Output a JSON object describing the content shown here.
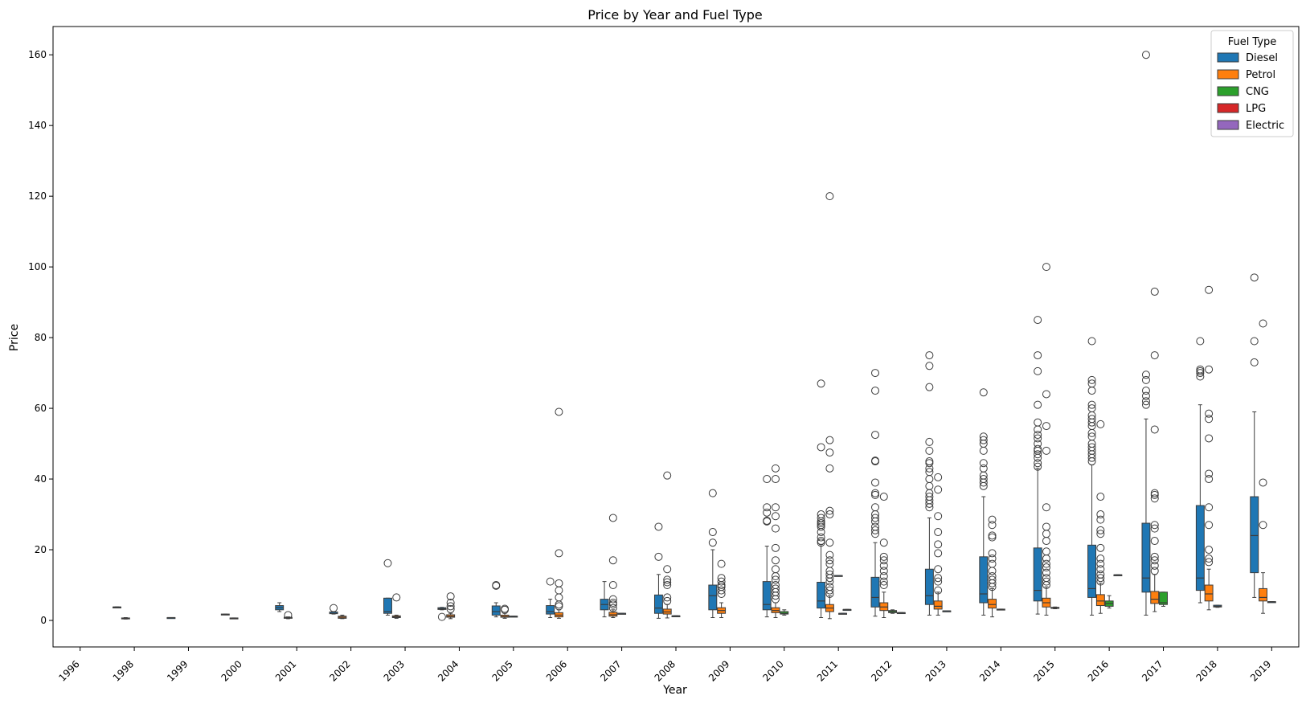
{
  "chart_data": {
    "type": "boxplot",
    "title": "Price by Year and Fuel Type",
    "xlabel": "Year",
    "ylabel": "Price",
    "ylim": [
      -7.5,
      168
    ],
    "yticks": [
      0,
      20,
      40,
      60,
      80,
      100,
      120,
      140,
      160
    ],
    "categories": [
      "1996",
      "1998",
      "1999",
      "2000",
      "2001",
      "2002",
      "2003",
      "2004",
      "2005",
      "2006",
      "2007",
      "2008",
      "2009",
      "2010",
      "2011",
      "2012",
      "2013",
      "2014",
      "2015",
      "2016",
      "2017",
      "2018",
      "2019"
    ],
    "legend": {
      "title": "Fuel Type",
      "position": "top-right",
      "entries": [
        {
          "name": "Diesel",
          "color": "#1f77b4"
        },
        {
          "name": "Petrol",
          "color": "#ff7f0e"
        },
        {
          "name": "CNG",
          "color": "#2ca02c"
        },
        {
          "name": "LPG",
          "color": "#d62728"
        },
        {
          "name": "Electric",
          "color": "#9467bd"
        }
      ]
    },
    "series": [
      {
        "name": "Diesel",
        "color": "#1f77b4",
        "boxes": [
          {
            "year": "1998",
            "whislo": 3.8,
            "q1": 3.8,
            "med": 3.8,
            "q3": 3.8,
            "whishi": 3.8,
            "fliers": []
          },
          {
            "year": "2001",
            "whislo": 2.5,
            "q1": 3.0,
            "med": 3.6,
            "q3": 4.2,
            "whishi": 5.0,
            "fliers": []
          },
          {
            "year": "2002",
            "whislo": 1.8,
            "q1": 1.9,
            "med": 2.0,
            "q3": 2.4,
            "whishi": 2.5,
            "fliers": [
              3.5
            ]
          },
          {
            "year": "2003",
            "whislo": 1.5,
            "q1": 2.0,
            "med": 2.5,
            "q3": 6.3,
            "whishi": 6.3,
            "fliers": [
              16.2
            ]
          },
          {
            "year": "2004",
            "whislo": 3.0,
            "q1": 3.1,
            "med": 3.3,
            "q3": 3.6,
            "whishi": 3.7,
            "fliers": [
              1.0
            ]
          },
          {
            "year": "2005",
            "whislo": 1.0,
            "q1": 1.5,
            "med": 2.5,
            "q3": 4.1,
            "whishi": 5.0,
            "fliers": [
              10.0,
              9.8
            ]
          },
          {
            "year": "2006",
            "whislo": 0.8,
            "q1": 1.8,
            "med": 2.5,
            "q3": 4.2,
            "whishi": 6.0,
            "fliers": [
              11.0
            ]
          },
          {
            "year": "2007",
            "whislo": 1.0,
            "q1": 3.0,
            "med": 4.5,
            "q3": 6.0,
            "whishi": 11.0,
            "fliers": []
          },
          {
            "year": "2008",
            "whislo": 0.6,
            "q1": 2.0,
            "med": 3.5,
            "q3": 7.2,
            "whishi": 13.0,
            "fliers": [
              18.0,
              26.5
            ]
          },
          {
            "year": "2009",
            "whislo": 0.8,
            "q1": 3.0,
            "med": 7.0,
            "q3": 10.0,
            "whishi": 20.0,
            "fliers": [
              22.0,
              25.0,
              36.0
            ]
          },
          {
            "year": "2010",
            "whislo": 1.0,
            "q1": 3.0,
            "med": 4.5,
            "q3": 11.0,
            "whishi": 21.0,
            "fliers": [
              28.0,
              28.2,
              30.5,
              32.0,
              40.0
            ]
          },
          {
            "year": "2011",
            "whislo": 0.8,
            "q1": 3.5,
            "med": 5.5,
            "q3": 10.8,
            "whishi": 21.5,
            "fliers": [
              22.0,
              22.5,
              23.5,
              25.0,
              26.5,
              27.0,
              27.5,
              28.0,
              29.0,
              30.0,
              49.0,
              67.0
            ]
          },
          {
            "year": "2012",
            "whislo": 1.2,
            "q1": 3.8,
            "med": 6.5,
            "q3": 12.2,
            "whishi": 22.0,
            "fliers": [
              24.5,
              25.5,
              26.5,
              28.0,
              29.0,
              30.0,
              32.0,
              35.5,
              36.0,
              39.0,
              45.0,
              45.2,
              52.5,
              65.0,
              70.0
            ]
          },
          {
            "year": "2013",
            "whislo": 1.5,
            "q1": 4.5,
            "med": 7.0,
            "q3": 14.5,
            "whishi": 29.0,
            "fliers": [
              32.0,
              33.0,
              34.0,
              35.0,
              36.0,
              38.0,
              40.0,
              42.0,
              43.0,
              44.5,
              45.0,
              48.0,
              50.5,
              66.0,
              72.0,
              75.0
            ]
          },
          {
            "year": "2014",
            "whislo": 1.5,
            "q1": 5.0,
            "med": 7.5,
            "q3": 18.0,
            "whishi": 35.0,
            "fliers": [
              38.0,
              39.0,
              40.0,
              41.0,
              43.0,
              44.5,
              48.0,
              50.0,
              51.0,
              52.0,
              64.5
            ]
          },
          {
            "year": "2015",
            "whislo": 1.8,
            "q1": 5.5,
            "med": 8.5,
            "q3": 20.5,
            "whishi": 43.0,
            "fliers": [
              43.5,
              44.5,
              46.0,
              47.0,
              48.0,
              48.5,
              50.0,
              51.5,
              52.5,
              54.0,
              56.0,
              61.0,
              70.5,
              75.0,
              85.0
            ]
          },
          {
            "year": "2016",
            "whislo": 1.5,
            "q1": 6.5,
            "med": 9.0,
            "q3": 21.3,
            "whishi": 44.0,
            "fliers": [
              45.0,
              46.0,
              47.0,
              48.0,
              49.0,
              50.0,
              52.0,
              53.0,
              55.0,
              56.0,
              57.0,
              58.0,
              60.0,
              61.0,
              65.0,
              67.0,
              68.0,
              79.0
            ]
          },
          {
            "year": "2017",
            "whislo": 1.5,
            "q1": 8.0,
            "med": 12.0,
            "q3": 27.5,
            "whishi": 57.0,
            "fliers": [
              61.0,
              62.0,
              63.5,
              65.0,
              68.0,
              69.5,
              160.0
            ]
          },
          {
            "year": "2018",
            "whislo": 5.0,
            "q1": 8.5,
            "med": 12.0,
            "q3": 32.5,
            "whishi": 61.0,
            "fliers": [
              69.0,
              70.0,
              70.5,
              71.0,
              79.0
            ]
          },
          {
            "year": "2019",
            "whislo": 6.5,
            "q1": 13.5,
            "med": 24.0,
            "q3": 35.0,
            "whishi": 59.0,
            "fliers": [
              73.0,
              79.0,
              97.0
            ]
          }
        ]
      },
      {
        "name": "Petrol",
        "color": "#ff7f0e",
        "boxes": [
          {
            "year": "1998",
            "whislo": 0.4,
            "q1": 0.5,
            "med": 0.6,
            "q3": 0.7,
            "whishi": 0.8,
            "fliers": []
          },
          {
            "year": "2000",
            "whislo": 0.5,
            "q1": 0.5,
            "med": 0.6,
            "q3": 0.7,
            "whishi": 0.7,
            "fliers": []
          },
          {
            "year": "2001",
            "whislo": 0.5,
            "q1": 0.6,
            "med": 0.7,
            "q3": 0.9,
            "whishi": 1.0,
            "fliers": [
              1.5
            ]
          },
          {
            "year": "2002",
            "whislo": 0.5,
            "q1": 0.6,
            "med": 0.9,
            "q3": 1.2,
            "whishi": 1.5,
            "fliers": []
          },
          {
            "year": "2003",
            "whislo": 0.6,
            "q1": 0.8,
            "med": 1.0,
            "q3": 1.3,
            "whishi": 1.5,
            "fliers": [
              6.5
            ]
          },
          {
            "year": "2004",
            "whislo": 0.5,
            "q1": 0.9,
            "med": 1.2,
            "q3": 1.6,
            "whishi": 2.0,
            "fliers": [
              3.2,
              4.0,
              5.0,
              6.8
            ]
          },
          {
            "year": "2005",
            "whislo": 0.6,
            "q1": 0.9,
            "med": 1.1,
            "q3": 1.5,
            "whishi": 2.0,
            "fliers": [
              3.0,
              3.3
            ]
          },
          {
            "year": "2006",
            "whislo": 0.6,
            "q1": 1.0,
            "med": 1.5,
            "q3": 2.2,
            "whishi": 3.0,
            "fliers": [
              4.0,
              4.5,
              6.5,
              8.5,
              10.5,
              19.0,
              59.0
            ]
          },
          {
            "year": "2007",
            "whislo": 0.8,
            "q1": 1.2,
            "med": 1.6,
            "q3": 2.3,
            "whishi": 3.0,
            "fliers": [
              3.5,
              4.5,
              5.0,
              6.0,
              10.0,
              17.0,
              29.0
            ]
          },
          {
            "year": "2008",
            "whislo": 0.7,
            "q1": 1.8,
            "med": 2.4,
            "q3": 3.2,
            "whishi": 4.5,
            "fliers": [
              5.5,
              6.5,
              10.0,
              10.8,
              11.5,
              14.5,
              41.0
            ]
          },
          {
            "year": "2009",
            "whislo": 0.8,
            "q1": 2.0,
            "med": 2.8,
            "q3": 3.6,
            "whishi": 5.0,
            "fliers": [
              7.5,
              8.5,
              9.5,
              10.0,
              11.0,
              12.0,
              16.0
            ]
          },
          {
            "year": "2010",
            "whislo": 0.8,
            "q1": 2.2,
            "med": 2.8,
            "q3": 3.6,
            "whishi": 5.0,
            "fliers": [
              6.0,
              7.0,
              8.0,
              9.0,
              10.0,
              11.5,
              12.5,
              14.5,
              17.0,
              20.5,
              26.0,
              29.5,
              32.0,
              40.0,
              43.0
            ]
          },
          {
            "year": "2011",
            "whislo": 0.5,
            "q1": 2.5,
            "med": 3.5,
            "q3": 4.5,
            "whishi": 7.0,
            "fliers": [
              7.5,
              8.5,
              9.5,
              11.0,
              12.0,
              13.0,
              14.0,
              16.0,
              17.0,
              18.5,
              22.0,
              30.0,
              31.0,
              43.0,
              47.5,
              51.0,
              120.0
            ]
          },
          {
            "year": "2012",
            "whislo": 0.8,
            "q1": 2.8,
            "med": 3.8,
            "q3": 5.0,
            "whishi": 8.0,
            "fliers": [
              10.0,
              11.0,
              12.5,
              14.0,
              15.5,
              17.0,
              18.0,
              22.0,
              35.0
            ]
          },
          {
            "year": "2013",
            "whislo": 1.5,
            "q1": 3.2,
            "med": 4.0,
            "q3": 5.5,
            "whishi": 8.0,
            "fliers": [
              8.5,
              11.0,
              12.0,
              14.5,
              19.0,
              21.5,
              25.0,
              29.5,
              37.0,
              40.5
            ]
          },
          {
            "year": "2014",
            "whislo": 1.0,
            "q1": 3.5,
            "med": 4.5,
            "q3": 6.0,
            "whishi": 9.0,
            "fliers": [
              9.5,
              10.5,
              11.5,
              12.5,
              14.0,
              16.0,
              17.5,
              19.0,
              23.5,
              24.0,
              27.0,
              28.5
            ]
          },
          {
            "year": "2015",
            "whislo": 1.5,
            "q1": 3.8,
            "med": 5.0,
            "q3": 6.3,
            "whishi": 9.5,
            "fliers": [
              10.0,
              11.0,
              12.0,
              13.5,
              15.0,
              16.0,
              17.5,
              19.5,
              22.5,
              24.5,
              26.5,
              32.0,
              48.0,
              55.0,
              64.0,
              100.0
            ]
          },
          {
            "year": "2016",
            "whislo": 2.0,
            "q1": 4.2,
            "med": 5.5,
            "q3": 7.3,
            "whishi": 10.5,
            "fliers": [
              11.0,
              12.0,
              13.0,
              14.5,
              16.0,
              17.5,
              20.5,
              24.5,
              25.5,
              28.5,
              30.0,
              35.0,
              55.5
            ]
          },
          {
            "year": "2017",
            "whislo": 2.5,
            "q1": 4.8,
            "med": 6.0,
            "q3": 8.2,
            "whishi": 13.0,
            "fliers": [
              14.0,
              15.5,
              17.0,
              18.0,
              22.5,
              26.0,
              27.0,
              34.5,
              35.5,
              36.0,
              54.0,
              75.0,
              93.0
            ]
          },
          {
            "year": "2018",
            "whislo": 3.0,
            "q1": 5.5,
            "med": 7.5,
            "q3": 10.0,
            "whishi": 14.5,
            "fliers": [
              16.5,
              17.5,
              20.0,
              27.0,
              32.0,
              40.0,
              41.5,
              51.5,
              57.0,
              58.5,
              71.0,
              93.5
            ]
          },
          {
            "year": "2019",
            "whislo": 2.0,
            "q1": 5.5,
            "med": 6.5,
            "q3": 9.0,
            "whishi": 13.5,
            "fliers": [
              27.0,
              39.0,
              84.0
            ]
          }
        ]
      },
      {
        "name": "CNG",
        "color": "#2ca02c",
        "boxes": [
          {
            "year": "2010",
            "whislo": 1.5,
            "q1": 1.8,
            "med": 2.0,
            "q3": 2.5,
            "whishi": 3.0,
            "fliers": []
          },
          {
            "year": "2012",
            "whislo": 2.0,
            "q1": 2.2,
            "med": 2.5,
            "q3": 2.8,
            "whishi": 3.0,
            "fliers": []
          },
          {
            "year": "2016",
            "whislo": 3.5,
            "q1": 4.0,
            "med": 4.8,
            "q3": 5.5,
            "whishi": 7.0,
            "fliers": []
          },
          {
            "year": "2017",
            "whislo": 4.0,
            "q1": 4.5,
            "med": 5.0,
            "q3": 8.0,
            "whishi": 8.0,
            "fliers": []
          }
        ]
      },
      {
        "name": "LPG",
        "color": "#d62728",
        "boxes": []
      },
      {
        "name": "Electric",
        "color": "#9467bd",
        "boxes": []
      }
    ],
    "misc_boxes": [
      {
        "year": "1999",
        "color": "#1f77b4",
        "whislo": 0.8,
        "q1": 0.8,
        "med": 0.8,
        "q3": 0.8,
        "whishi": 0.8,
        "fliers": []
      },
      {
        "year": "2000",
        "color": "#1f77b4",
        "whislo": 1.6,
        "q1": 1.6,
        "med": 1.7,
        "q3": 1.8,
        "whishi": 1.8,
        "fliers": []
      },
      {
        "year": "2005",
        "color": "#1f77b4",
        "whislo": 1.2,
        "q1": 1.2,
        "med": 1.2,
        "q3": 1.2,
        "whishi": 1.2,
        "fliers": [],
        "slot": 2
      },
      {
        "year": "2007",
        "color": "#1f77b4",
        "whislo": 2.0,
        "q1": 2.0,
        "med": 2.0,
        "q3": 2.0,
        "whishi": 2.0,
        "fliers": [],
        "slot": 2
      },
      {
        "year": "2008",
        "color": "#1f77b4",
        "whislo": 1.3,
        "q1": 1.3,
        "med": 1.3,
        "q3": 1.3,
        "whishi": 1.3,
        "fliers": [],
        "slot": 2
      },
      {
        "year": "2011",
        "color": "#1f77b4",
        "whislo": 12.7,
        "q1": 12.7,
        "med": 12.7,
        "q3": 12.7,
        "whishi": 12.7,
        "fliers": [],
        "slot": 2
      },
      {
        "year": "2011",
        "color": "#1f77b4",
        "whislo": 2.0,
        "q1": 2.0,
        "med": 2.0,
        "q3": 2.0,
        "whishi": 2.0,
        "fliers": [],
        "slot": 2.5
      },
      {
        "year": "2011",
        "color": "#1f77b4",
        "whislo": 3.1,
        "q1": 3.1,
        "med": 3.1,
        "q3": 3.1,
        "whishi": 3.1,
        "fliers": [],
        "slot": 3
      },
      {
        "year": "2012",
        "color": "#1f77b4",
        "whislo": 2.2,
        "q1": 2.2,
        "med": 2.2,
        "q3": 2.2,
        "whishi": 2.2,
        "fliers": [],
        "slot": 3
      },
      {
        "year": "2013",
        "color": "#1f77b4",
        "whislo": 2.7,
        "q1": 2.7,
        "med": 2.7,
        "q3": 2.7,
        "whishi": 2.7,
        "fliers": [],
        "slot": 2
      },
      {
        "year": "2014",
        "color": "#1f77b4",
        "whislo": 3.0,
        "q1": 3.0,
        "med": 3.1,
        "q3": 3.2,
        "whishi": 3.2,
        "fliers": [],
        "slot": 2
      },
      {
        "year": "2015",
        "color": "#1f77b4",
        "whislo": 3.3,
        "q1": 3.4,
        "med": 3.5,
        "q3": 3.7,
        "whishi": 3.8,
        "fliers": [],
        "slot": 2
      },
      {
        "year": "2016",
        "color": "#1f77b4",
        "whislo": 12.9,
        "q1": 12.9,
        "med": 12.9,
        "q3": 12.9,
        "whishi": 12.9,
        "fliers": [],
        "slot": 3
      },
      {
        "year": "2018",
        "color": "#1f77b4",
        "whislo": 3.7,
        "q1": 3.8,
        "med": 4.0,
        "q3": 4.3,
        "whishi": 4.3,
        "fliers": [],
        "slot": 2
      },
      {
        "year": "2019",
        "color": "#1f77b4",
        "whislo": 5.3,
        "q1": 5.3,
        "med": 5.3,
        "q3": 5.3,
        "whishi": 5.3,
        "fliers": [],
        "slot": 2
      }
    ]
  }
}
